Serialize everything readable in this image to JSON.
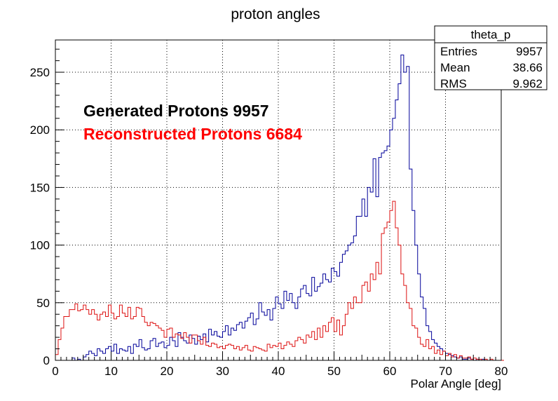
{
  "chart_data": {
    "type": "histogram",
    "title": "proton angles",
    "xlabel": "Polar Angle [deg]",
    "ylabel": "",
    "xlim": [
      0,
      80
    ],
    "ylim": [
      0,
      278
    ],
    "x_ticks": [
      0,
      10,
      20,
      30,
      40,
      50,
      60,
      70,
      80
    ],
    "y_ticks": [
      0,
      50,
      100,
      150,
      200,
      250
    ],
    "grid": true,
    "bin_width": 0.5,
    "stats_box": {
      "name": "theta_p",
      "rows": [
        {
          "label": "Entries",
          "value": "9957"
        },
        {
          "label": "Mean",
          "value": "38.66"
        },
        {
          "label": "RMS",
          "value": "9.962"
        }
      ]
    },
    "annotations": [
      {
        "text": "Generated Protons 9957",
        "color": "#000000"
      },
      {
        "text": "Reconstructed Protons 6684",
        "color": "#ff0000"
      }
    ],
    "series": [
      {
        "color": "#000099",
        "x_start": 0,
        "counts": [
          0,
          0,
          0,
          0,
          0,
          0,
          2,
          0,
          1,
          0,
          3,
          5,
          8,
          6,
          4,
          10,
          8,
          6,
          10,
          12,
          8,
          14,
          6,
          10,
          9,
          8,
          12,
          6,
          14,
          12,
          18,
          11,
          9,
          10,
          17,
          19,
          12,
          15,
          16,
          11,
          13,
          20,
          17,
          12,
          24,
          20,
          17,
          15,
          22,
          19,
          14,
          21,
          18,
          23,
          16,
          27,
          22,
          25,
          21,
          20,
          25,
          30,
          22,
          28,
          26,
          31,
          33,
          28,
          34,
          37,
          41,
          31,
          36,
          50,
          42,
          39,
          44,
          35,
          45,
          55,
          49,
          45,
          60,
          52,
          58,
          50,
          45,
          55,
          62,
          65,
          58,
          56,
          72,
          60,
          64,
          67,
          75,
          70,
          68,
          80,
          77,
          73,
          85,
          92,
          95,
          100,
          102,
          108,
          125,
          125,
          140,
          125,
          150,
          146,
          175,
          142,
          176,
          180,
          182,
          186,
          200,
          210,
          226,
          240,
          265,
          250,
          255,
          166,
          130,
          100,
          75,
          55,
          45,
          30,
          25,
          18,
          15,
          12,
          10,
          8,
          6,
          5,
          4,
          3,
          2,
          3,
          1,
          1,
          2,
          1,
          0,
          1,
          0,
          1,
          0,
          0,
          0,
          0,
          0,
          0
        ],
        "x_end_note": "remaining bins to 80 are ~0"
      },
      {
        "color": "#dd1111",
        "x_start": 0,
        "counts": [
          5,
          18,
          28,
          38,
          38,
          44,
          44,
          49,
          43,
          44,
          48,
          44,
          40,
          44,
          40,
          35,
          40,
          42,
          38,
          48,
          41,
          36,
          38,
          48,
          41,
          38,
          46,
          36,
          38,
          46,
          45,
          38,
          33,
          30,
          33,
          32,
          30,
          28,
          26,
          20,
          27,
          28,
          20,
          23,
          22,
          19,
          24,
          20,
          15,
          22,
          22,
          17,
          14,
          20,
          13,
          12,
          15,
          14,
          11,
          12,
          10,
          13,
          14,
          13,
          10,
          12,
          9,
          11,
          13,
          9,
          8,
          12,
          11,
          10,
          9,
          8,
          14,
          11,
          13,
          12,
          15,
          10,
          13,
          16,
          14,
          12,
          17,
          20,
          18,
          15,
          22,
          20,
          25,
          18,
          28,
          20,
          30,
          25,
          33,
          37,
          25,
          35,
          22,
          30,
          40,
          50,
          45,
          55,
          50,
          50,
          65,
          68,
          60,
          75,
          70,
          85,
          75,
          110,
          115,
          120,
          130,
          138,
          115,
          100,
          75,
          65,
          50,
          45,
          30,
          28,
          20,
          14,
          12,
          18,
          10,
          12,
          6,
          9,
          5,
          8,
          4,
          6,
          3,
          5,
          2,
          4,
          2,
          2,
          3,
          1,
          2,
          1,
          1,
          0,
          1,
          0,
          1,
          0,
          0,
          0,
          0
        ]
      }
    ]
  }
}
